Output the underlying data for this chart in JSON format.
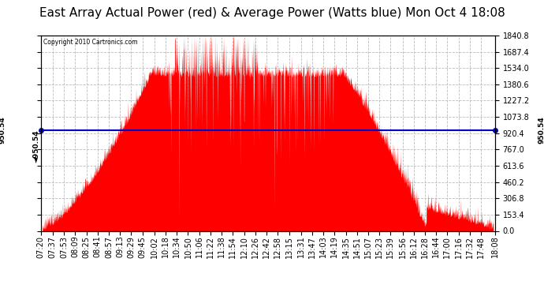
{
  "title": "East Array Actual Power (red) & Average Power (Watts blue) Mon Oct 4 18:08",
  "copyright": "Copyright 2010 Cartronics.com",
  "avg_power": 950.54,
  "ymax": 1840.8,
  "ymin": 0.0,
  "yticks": [
    0.0,
    153.4,
    306.8,
    460.2,
    613.6,
    767.0,
    920.4,
    1073.8,
    1227.2,
    1380.6,
    1534.0,
    1687.4,
    1840.8
  ],
  "background_color": "#ffffff",
  "plot_bg_color": "#ffffff",
  "grid_color": "#bbbbbb",
  "fill_color": "#ff0000",
  "line_color": "#0000cc",
  "title_fontsize": 11,
  "tick_fontsize": 7,
  "xtick_labels": [
    "07:20",
    "07:37",
    "07:53",
    "08:09",
    "08:25",
    "08:41",
    "08:57",
    "09:13",
    "09:29",
    "09:45",
    "10:02",
    "10:18",
    "10:34",
    "10:50",
    "11:06",
    "11:22",
    "11:38",
    "11:54",
    "12:10",
    "12:26",
    "12:42",
    "12:58",
    "13:15",
    "13:31",
    "13:47",
    "14:03",
    "14:19",
    "14:35",
    "14:51",
    "15:07",
    "15:23",
    "15:39",
    "15:56",
    "16:12",
    "16:28",
    "16:44",
    "17:00",
    "17:16",
    "17:32",
    "17:48",
    "18:08"
  ]
}
